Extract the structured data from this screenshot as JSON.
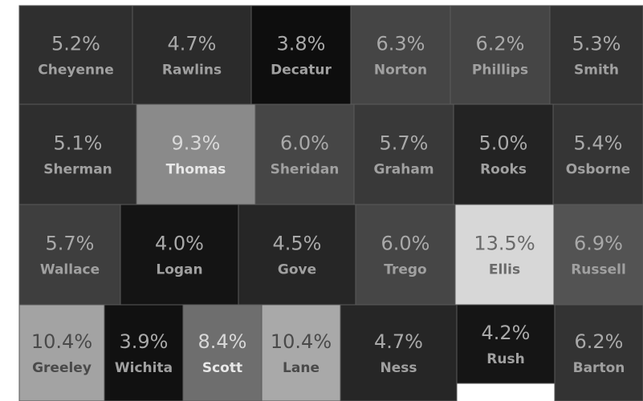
{
  "chart_data": {
    "type": "tilemap",
    "regions": [
      "Cheyenne",
      "Rawlins",
      "Decatur",
      "Norton",
      "Phillips",
      "Smith",
      "Sherman",
      "Thomas",
      "Sheridan",
      "Graham",
      "Rooks",
      "Osborne",
      "Wallace",
      "Logan",
      "Gove",
      "Trego",
      "Ellis",
      "Russell",
      "Greeley",
      "Wichita",
      "Scott",
      "Lane",
      "Ness",
      "Rush",
      "Barton"
    ],
    "values": [
      5.2,
      4.7,
      3.8,
      6.3,
      6.2,
      5.3,
      5.1,
      9.3,
      6.0,
      5.7,
      5.0,
      5.4,
      5.7,
      4.0,
      4.5,
      6.0,
      13.5,
      6.9,
      10.4,
      3.9,
      8.4,
      10.4,
      4.7,
      4.2,
      6.2
    ],
    "value_labels": [
      "5.2%",
      "4.7%",
      "3.8%",
      "6.3%",
      "6.2%",
      "5.3%",
      "5.1%",
      "9.3%",
      "6.0%",
      "5.7%",
      "5.0%",
      "5.4%",
      "5.7%",
      "4.0%",
      "4.5%",
      "6.0%",
      "13.5%",
      "6.9%",
      "10.4%",
      "3.9%",
      "8.4%",
      "10.4%",
      "4.7%",
      "4.2%",
      "6.2%"
    ],
    "colors": [
      "#2f2f2f",
      "#2b2b2b",
      "#0e0e0e",
      "#454545",
      "#454545",
      "#333333",
      "#2e2e2e",
      "#8a8a8a",
      "#464646",
      "#393939",
      "#232323",
      "#353535",
      "#3e3e3e",
      "#141414",
      "#262626",
      "#464646",
      "#d7d7d7",
      "#535353",
      "#a3a3a3",
      "#111111",
      "#6e6e6e",
      "#a9a9a9",
      "#262626",
      "#151515",
      "#333333"
    ]
  }
}
